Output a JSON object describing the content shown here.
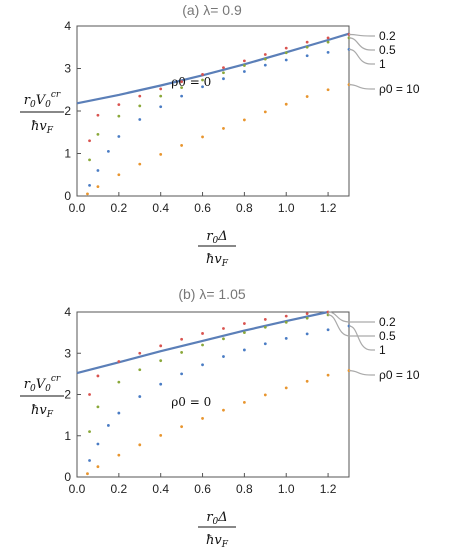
{
  "chart_data": [
    {
      "type": "scatter",
      "title": "(a) λ= 0.9",
      "xlabel": "r0Δ/ħvF",
      "ylabel": "r0V0^cr/ħvF",
      "xlim": [
        0,
        1.3
      ],
      "ylim": [
        0,
        4
      ],
      "x_ticks": [
        "0.0",
        "0.2",
        "0.4",
        "0.6",
        "0.8",
        "1.0",
        "1.2"
      ],
      "y_ticks": [
        "0",
        "1",
        "2",
        "3",
        "4"
      ],
      "series": [
        {
          "name": "ρ0 = 0",
          "style": "line",
          "color": "#5b7fb8",
          "x": [
            0,
            0.2,
            0.4,
            0.6,
            0.8,
            1.0,
            1.2,
            1.3
          ],
          "y": [
            2.18,
            2.38,
            2.6,
            2.84,
            3.1,
            3.38,
            3.67,
            3.82
          ]
        },
        {
          "name": "0.2",
          "style": "dots",
          "color": "#d9534f",
          "x": [
            0.06,
            0.1,
            0.2,
            0.3,
            0.4,
            0.5,
            0.6,
            0.7,
            0.8,
            0.9,
            1.0,
            1.1,
            1.2,
            1.3
          ],
          "y": [
            1.3,
            1.9,
            2.15,
            2.35,
            2.52,
            2.69,
            2.86,
            3.02,
            3.18,
            3.33,
            3.48,
            3.62,
            3.72,
            3.8
          ]
        },
        {
          "name": "0.5",
          "style": "dots",
          "color": "#8aa83a",
          "x": [
            0.06,
            0.1,
            0.2,
            0.3,
            0.4,
            0.5,
            0.6,
            0.7,
            0.8,
            0.9,
            1.0,
            1.1,
            1.2,
            1.3
          ],
          "y": [
            0.85,
            1.45,
            1.88,
            2.12,
            2.35,
            2.55,
            2.73,
            2.9,
            3.07,
            3.22,
            3.37,
            3.5,
            3.62,
            3.72
          ]
        },
        {
          "name": "1",
          "style": "dots",
          "color": "#4a7cc4",
          "x": [
            0.06,
            0.1,
            0.15,
            0.2,
            0.3,
            0.4,
            0.5,
            0.6,
            0.7,
            0.8,
            0.9,
            1.0,
            1.1,
            1.2,
            1.3
          ],
          "y": [
            0.25,
            0.6,
            1.05,
            1.4,
            1.8,
            2.1,
            2.35,
            2.57,
            2.76,
            2.93,
            3.08,
            3.2,
            3.3,
            3.38,
            3.45
          ]
        },
        {
          "name": "ρ0 = 10",
          "style": "dots",
          "color": "#e8952e",
          "x": [
            0.05,
            0.1,
            0.2,
            0.3,
            0.4,
            0.5,
            0.6,
            0.7,
            0.8,
            0.9,
            1.0,
            1.1,
            1.2,
            1.3
          ],
          "y": [
            0.05,
            0.22,
            0.5,
            0.75,
            0.98,
            1.19,
            1.39,
            1.59,
            1.79,
            1.98,
            2.16,
            2.34,
            2.5,
            2.62
          ]
        }
      ],
      "callouts": [
        "0.2",
        "0.5",
        "1",
        "ρ0 = 10"
      ],
      "inline_label": "ρ0 = 0"
    },
    {
      "type": "scatter",
      "title": "(b) λ= 1.05",
      "xlabel": "r0Δ/ħvF",
      "ylabel": "r0V0^cr/ħvF",
      "xlim": [
        0,
        1.3
      ],
      "ylim": [
        0,
        4
      ],
      "x_ticks": [
        "0.0",
        "0.2",
        "0.4",
        "0.6",
        "0.8",
        "1.0",
        "1.2"
      ],
      "y_ticks": [
        "0",
        "1",
        "2",
        "3",
        "4"
      ],
      "series": [
        {
          "name": "ρ0 = 0",
          "style": "line",
          "color": "#5b7fb8",
          "x": [
            0,
            0.2,
            0.4,
            0.6,
            0.8,
            1.0,
            1.2
          ],
          "y": [
            2.52,
            2.78,
            3.05,
            3.3,
            3.55,
            3.78,
            4.0
          ]
        },
        {
          "name": "0.2",
          "style": "dots",
          "color": "#d9534f",
          "x": [
            0.06,
            0.1,
            0.2,
            0.3,
            0.4,
            0.5,
            0.6,
            0.7,
            0.8,
            0.9,
            1.0,
            1.1,
            1.2
          ],
          "y": [
            2.0,
            2.45,
            2.8,
            3.0,
            3.18,
            3.34,
            3.48,
            3.6,
            3.72,
            3.82,
            3.9,
            3.96,
            4.0
          ]
        },
        {
          "name": "0.5",
          "style": "dots",
          "color": "#8aa83a",
          "x": [
            0.06,
            0.1,
            0.2,
            0.3,
            0.4,
            0.5,
            0.6,
            0.7,
            0.8,
            0.9,
            1.0,
            1.1,
            1.2
          ],
          "y": [
            1.1,
            1.7,
            2.3,
            2.6,
            2.82,
            3.02,
            3.2,
            3.35,
            3.5,
            3.63,
            3.75,
            3.85,
            3.93
          ]
        },
        {
          "name": "1",
          "style": "dots",
          "color": "#4a7cc4",
          "x": [
            0.06,
            0.1,
            0.15,
            0.2,
            0.3,
            0.4,
            0.5,
            0.6,
            0.7,
            0.8,
            0.9,
            1.0,
            1.1,
            1.2,
            1.3
          ],
          "y": [
            0.4,
            0.8,
            1.25,
            1.55,
            1.95,
            2.25,
            2.5,
            2.72,
            2.92,
            3.08,
            3.23,
            3.36,
            3.47,
            3.57,
            3.66
          ]
        },
        {
          "name": "ρ0 = 10",
          "style": "dots",
          "color": "#e8952e",
          "x": [
            0.05,
            0.1,
            0.2,
            0.3,
            0.4,
            0.5,
            0.6,
            0.7,
            0.8,
            0.9,
            1.0,
            1.1,
            1.2,
            1.3
          ],
          "y": [
            0.08,
            0.25,
            0.53,
            0.78,
            1.01,
            1.22,
            1.42,
            1.62,
            1.81,
            1.99,
            2.16,
            2.32,
            2.47,
            2.58
          ]
        }
      ],
      "callouts": [
        "0.2",
        "0.5",
        "1",
        "ρ0 = 10"
      ],
      "inline_label": "ρ0 = 0"
    }
  ]
}
